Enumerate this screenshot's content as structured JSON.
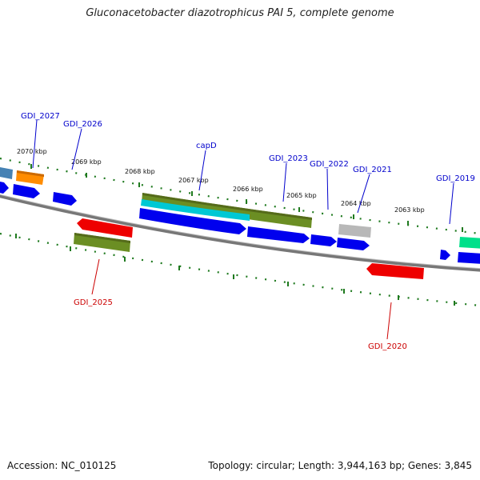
{
  "title": "Gluconacetobacter diazotrophicus PAI 5, complete genome",
  "footer": {
    "accession": "Accession: NC_010125",
    "topology": "Topology: circular; Length: 3,944,163 bp; Genes: 3,845"
  },
  "kbp_labels": [
    "2070 kbp",
    "2069 kbp",
    "2068 kbp",
    "2067 kbp",
    "2066 kbp",
    "2065 kbp",
    "2064 kbp",
    "2063 kbp"
  ],
  "gene_labels_top": [
    "GDI_2027",
    "GDI_2026",
    "capD",
    "GDI_2023",
    "GDI_2022",
    "GDI_2021",
    "GDI_2019"
  ],
  "gene_labels_bottom": [
    "GDI_2025",
    "GDI_2020"
  ],
  "colors": {
    "label_top": "#0000cc",
    "label_bottom": "#cc0000",
    "ruler": "#1f7a1f",
    "backbone": "#888888"
  }
}
